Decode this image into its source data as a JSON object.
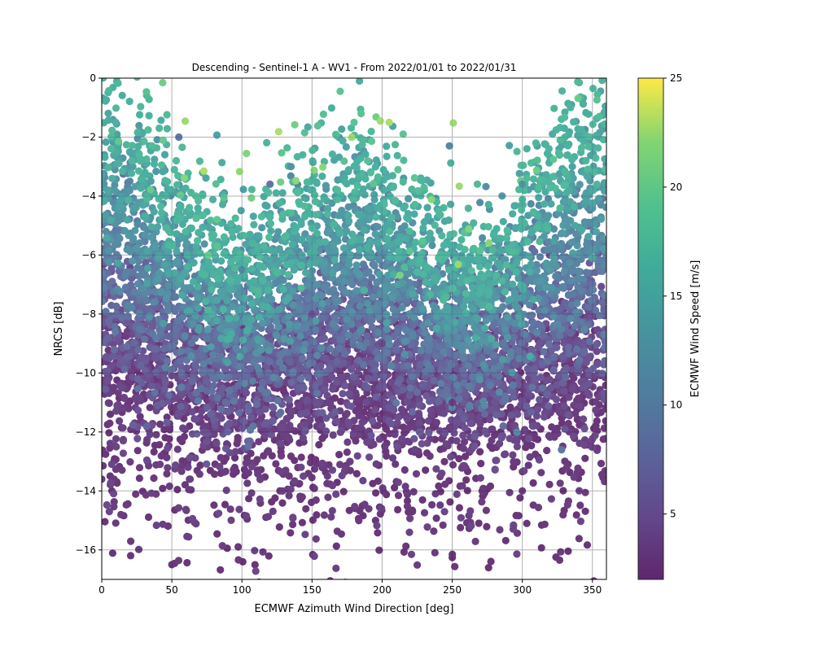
{
  "chart_data": {
    "type": "scatter",
    "title": "Descending - Sentinel-1 A - WV1 - From 2022/01/01 to 2022/01/31",
    "xlabel": "ECMWF Azimuth Wind Direction [deg]",
    "ylabel": "NRCS [dB]",
    "xlim": [
      0,
      360
    ],
    "ylim": [
      -17,
      0
    ],
    "xticks": [
      0,
      50,
      100,
      150,
      200,
      250,
      300,
      350
    ],
    "yticks": [
      0,
      -2,
      -4,
      -6,
      -8,
      -10,
      -12,
      -14,
      -16
    ],
    "grid": true,
    "colorbar": {
      "label": "ECMWF Wind Speed [m/s]",
      "range": [
        2,
        25
      ],
      "ticks": [
        5,
        10,
        15,
        20,
        25
      ],
      "colormap": "viridis"
    },
    "point_count": 7200,
    "series": [
      {
        "color_by": "wind_speed_m_s",
        "points_sample": [
          {
            "x": 10,
            "y": -1.5,
            "c": 16.5
          },
          {
            "x": 20,
            "y": -2.5,
            "c": 15
          },
          {
            "x": 35,
            "y": -3.5,
            "c": 14
          },
          {
            "x": 55,
            "y": -2.0,
            "c": 9
          },
          {
            "x": 67,
            "y": -4.0,
            "c": 18
          },
          {
            "x": 120,
            "y": -3.6,
            "c": 9
          },
          {
            "x": 135,
            "y": -3.0,
            "c": 13
          },
          {
            "x": 180,
            "y": -1.5,
            "c": 19
          },
          {
            "x": 185,
            "y": -1.2,
            "c": 19
          },
          {
            "x": 205,
            "y": -1.5,
            "c": 23
          },
          {
            "x": 215,
            "y": -1.9,
            "c": 19
          },
          {
            "x": 248,
            "y": -2.3,
            "c": 11
          },
          {
            "x": 300,
            "y": -3.6,
            "c": 13
          },
          {
            "x": 330,
            "y": -1.7,
            "c": 16
          },
          {
            "x": 355,
            "y": -1.3,
            "c": 18
          },
          {
            "x": 100,
            "y": -6.5,
            "c": 11
          },
          {
            "x": 150,
            "y": -8,
            "c": 5
          },
          {
            "x": 200,
            "y": -9,
            "c": 4
          },
          {
            "x": 250,
            "y": -11,
            "c": 3
          },
          {
            "x": 300,
            "y": -14,
            "c": 3
          },
          {
            "x": 0,
            "y": -13.6,
            "c": 3
          },
          {
            "x": 328,
            "y": -12.6,
            "c": 9
          },
          {
            "x": 108,
            "y": -11.8,
            "c": 9
          },
          {
            "x": 50,
            "y": -16.5,
            "c": 2.5
          }
        ]
      }
    ]
  }
}
